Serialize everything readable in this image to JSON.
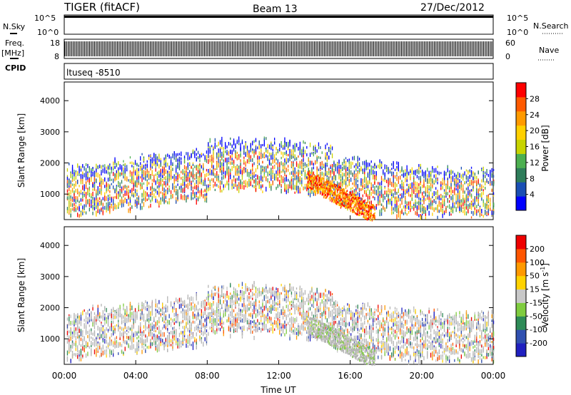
{
  "header": {
    "title": "TIGER (fitACF)",
    "beam": "Beam 13",
    "date": "27/Dec/2012"
  },
  "params": {
    "nsky_label": "N.Sky",
    "nsearch_label": "N.Search",
    "noise_ticks": [
      "10^5",
      "10^0"
    ],
    "freq_label": "Freq.",
    "freq_unit": "[MHz]",
    "freq_ticks": [
      "18",
      "8"
    ],
    "nave_ticks": [
      "60",
      "0"
    ],
    "nave_label": "Nave",
    "cpid_label": "CPID",
    "cpid_value": "ltuseq -8510"
  },
  "colors": {
    "power_scale": [
      "#0000ff",
      "#1a4fb4",
      "#2e7d5a",
      "#4caf50",
      "#c8d400",
      "#ffd000",
      "#ff9a00",
      "#ff5a00",
      "#ff0000"
    ],
    "velocity_scale": [
      "#2020c0",
      "#3050b0",
      "#2e8b57",
      "#7fcc3f",
      "#c8c8c8",
      "#ffd200",
      "#ff9900",
      "#ff5500",
      "#ee0000"
    ],
    "ground": "#b4b4b4"
  },
  "chart_data": [
    {
      "type": "heatmap",
      "name": "power-panel",
      "ylabel": "Slant Range [km]",
      "yticks": [
        1000,
        2000,
        3000,
        4000
      ],
      "ylim": [
        180,
        4600
      ],
      "xlim": [
        0,
        24
      ],
      "colorbar": {
        "label": "Power [dB]",
        "ticks": [
          "4",
          "8",
          "12",
          "16",
          "20",
          "24",
          "28"
        ],
        "range": [
          0,
          30
        ]
      },
      "scatter_bands": [
        {
          "t_start": 0,
          "t_end": 24,
          "range_low": 900,
          "range_high": 2200,
          "value": "12-24"
        },
        {
          "t_start": 14,
          "t_end": 17,
          "range_low": 300,
          "range_high": 1200,
          "value": "16-28"
        }
      ]
    },
    {
      "type": "heatmap",
      "name": "velocity-panel",
      "ylabel": "Slant Range [km]",
      "yticks": [
        1000,
        2000,
        3000,
        4000
      ],
      "ylim": [
        180,
        4600
      ],
      "xlim": [
        0,
        24
      ],
      "xticks": [
        "00:00",
        "04:00",
        "08:00",
        "12:00",
        "16:00",
        "20:00",
        "00:00"
      ],
      "xlabel": "Time UT",
      "colorbar": {
        "label": "Velocity [m s^-1]",
        "ticks": [
          "200",
          "100",
          "50",
          "15",
          "-15",
          "-50",
          "-100",
          "-200"
        ],
        "range": [
          -250,
          250
        ]
      }
    }
  ]
}
